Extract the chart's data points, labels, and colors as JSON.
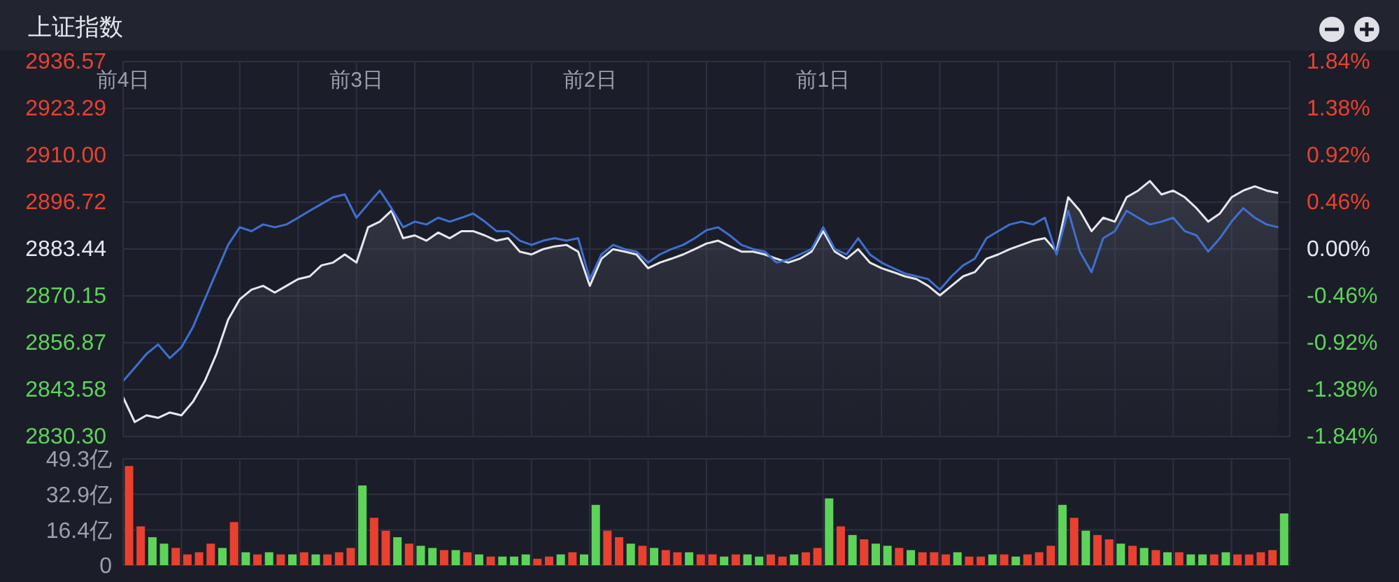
{
  "chart_data": [
    {
      "type": "line",
      "title": "上证指数",
      "categories": [
        "前4日",
        null,
        null,
        null,
        null,
        null,
        null,
        null,
        null,
        null,
        null,
        null,
        null,
        null,
        null,
        null,
        null,
        null,
        null,
        null,
        "前3日",
        null,
        null,
        null,
        null,
        null,
        null,
        null,
        null,
        null,
        null,
        null,
        null,
        null,
        null,
        null,
        null,
        null,
        null,
        null,
        "前2日",
        null,
        null,
        null,
        null,
        null,
        null,
        null,
        null,
        null,
        null,
        null,
        null,
        null,
        null,
        null,
        null,
        null,
        null,
        null,
        "前1日",
        null,
        null,
        null,
        null,
        null,
        null,
        null,
        null,
        null,
        null,
        null,
        null,
        null,
        null,
        null,
        null,
        null,
        null,
        null,
        null,
        null,
        null,
        null,
        null,
        null,
        null,
        null,
        null,
        null,
        null,
        null,
        null,
        null,
        null,
        null,
        null,
        null,
        null,
        null
      ],
      "series": [
        {
          "type": "area",
          "color": "#e6e8ee",
          "values": [
            2841.4,
            2834.4,
            2836.3,
            2835.6,
            2837.1,
            2836.3,
            2840.2,
            2846.0,
            2853.7,
            2863.4,
            2869.2,
            2871.9,
            2873.0,
            2871.1,
            2873.0,
            2874.9,
            2875.7,
            2878.8,
            2879.6,
            2881.9,
            2879.6,
            2889.6,
            2891.2,
            2894.3,
            2886.5,
            2887.3,
            2885.8,
            2888.1,
            2886.5,
            2888.5,
            2888.5,
            2887.3,
            2885.8,
            2886.5,
            2882.7,
            2881.9,
            2883.4,
            2884.2,
            2884.6,
            2882.7,
            2873.0,
            2880.7,
            2883.4,
            2882.7,
            2881.9,
            2878.0,
            2879.6,
            2880.7,
            2881.9,
            2883.4,
            2885.0,
            2885.8,
            2884.2,
            2882.7,
            2882.7,
            2881.9,
            2880.7,
            2879.6,
            2880.7,
            2882.7,
            2888.5,
            2882.7,
            2880.7,
            2883.4,
            2879.6,
            2878.0,
            2876.9,
            2875.7,
            2874.9,
            2873.0,
            2870.3,
            2873.0,
            2875.7,
            2876.9,
            2880.7,
            2881.9,
            2883.4,
            2884.6,
            2885.8,
            2886.5,
            2882.7,
            2898.1,
            2894.3,
            2888.5,
            2892.3,
            2891.2,
            2898.1,
            2900.0,
            2902.7,
            2898.9,
            2900.0,
            2898.1,
            2895.0,
            2891.2,
            2893.5,
            2898.1,
            2900.0,
            2901.2,
            2900.0,
            2899.3
          ]
        },
        {
          "type": "line",
          "color": "#3f6fd1",
          "values": [
            2846.0,
            2849.8,
            2853.7,
            2856.4,
            2852.5,
            2855.6,
            2861.4,
            2869.2,
            2876.9,
            2884.6,
            2889.6,
            2888.5,
            2890.4,
            2889.6,
            2890.4,
            2892.3,
            2894.3,
            2896.2,
            2898.1,
            2898.9,
            2892.3,
            2896.2,
            2900.0,
            2895.0,
            2889.6,
            2891.2,
            2890.4,
            2892.3,
            2891.2,
            2892.3,
            2893.5,
            2891.2,
            2888.5,
            2888.5,
            2885.8,
            2884.6,
            2885.8,
            2886.5,
            2885.8,
            2886.5,
            2874.9,
            2881.9,
            2884.6,
            2883.4,
            2882.7,
            2879.6,
            2881.9,
            2883.4,
            2884.6,
            2886.5,
            2888.8,
            2889.6,
            2887.3,
            2884.6,
            2883.4,
            2882.7,
            2879.6,
            2880.4,
            2881.9,
            2883.4,
            2889.6,
            2883.4,
            2881.9,
            2886.5,
            2881.9,
            2879.6,
            2878.0,
            2876.5,
            2875.7,
            2874.9,
            2871.9,
            2875.7,
            2878.8,
            2880.7,
            2886.5,
            2888.5,
            2890.4,
            2891.2,
            2890.4,
            2892.3,
            2881.9,
            2894.3,
            2882.7,
            2876.9,
            2886.5,
            2888.5,
            2894.3,
            2892.3,
            2890.4,
            2891.2,
            2892.3,
            2888.5,
            2887.3,
            2882.7,
            2886.5,
            2891.2,
            2895.0,
            2892.3,
            2890.4,
            2889.6
          ]
        }
      ],
      "ylim": [
        2830.3,
        2936.57
      ],
      "yticks": [
        {
          "value": 2830.3,
          "label": "2830.30"
        },
        {
          "value": 2843.58,
          "label": "2843.58"
        },
        {
          "value": 2856.87,
          "label": "2856.87"
        },
        {
          "value": 2870.15,
          "label": "2870.15"
        },
        {
          "value": 2883.44,
          "label": "2883.44"
        },
        {
          "value": 2896.72,
          "label": "2896.72"
        },
        {
          "value": 2910,
          "label": "2910.00"
        },
        {
          "value": 2923.29,
          "label": "2923.29"
        },
        {
          "value": 2936.57,
          "label": "2936.57"
        }
      ],
      "y2lim": [
        -1.84,
        1.84
      ],
      "y2ticks": [
        {
          "value": -1.84,
          "label": "-1.84%"
        },
        {
          "value": -1.38,
          "label": "-1.38%"
        },
        {
          "value": -0.92,
          "label": "-0.92%"
        },
        {
          "value": -0.46,
          "label": "-0.46%"
        },
        {
          "value": 0,
          "label": "0.00%"
        },
        {
          "value": 0.46,
          "label": "0.46%"
        },
        {
          "value": 0.92,
          "label": "0.92%"
        },
        {
          "value": 1.38,
          "label": "1.38%"
        },
        {
          "value": 1.84,
          "label": "1.84%"
        }
      ],
      "grid": true
    },
    {
      "type": "bar",
      "categories": [
        null,
        null,
        null,
        null,
        null,
        null,
        null,
        null,
        null,
        null,
        null,
        null,
        null,
        null,
        null,
        null,
        null,
        null,
        null,
        null,
        null,
        null,
        null,
        null,
        null,
        null,
        null,
        null,
        null,
        null,
        null,
        null,
        null,
        null,
        null,
        null,
        null,
        null,
        null,
        null,
        null,
        null,
        null,
        null,
        null,
        null,
        null,
        null,
        null,
        null,
        null,
        null,
        null,
        null,
        null,
        null,
        null,
        null,
        null,
        null,
        null,
        null,
        null,
        null,
        null,
        null,
        null,
        null,
        null,
        null,
        null,
        null,
        null,
        null,
        null,
        null,
        null,
        null,
        null,
        null,
        null,
        null,
        null,
        null,
        null,
        null,
        null,
        null,
        null,
        null,
        null,
        null,
        null,
        null,
        null,
        null,
        null,
        null,
        null,
        null
      ],
      "values": [
        46,
        18,
        13,
        10,
        8,
        5,
        6,
        10,
        8,
        20,
        6,
        5,
        6,
        5,
        5,
        6,
        5,
        5,
        6,
        8,
        37,
        22,
        16,
        13,
        10,
        9,
        8,
        7,
        7,
        6,
        5,
        4,
        4,
        4,
        5,
        3,
        4,
        5,
        6,
        5,
        28,
        16,
        13,
        10,
        9,
        8,
        7,
        6,
        6,
        5,
        5,
        4,
        5,
        5,
        4,
        5,
        4,
        5,
        6,
        8,
        31,
        18,
        14,
        12,
        10,
        9,
        8,
        7,
        6,
        6,
        5,
        6,
        4,
        4,
        5,
        5,
        4,
        5,
        6,
        9,
        28,
        22,
        16,
        14,
        12,
        10,
        9,
        8,
        7,
        6,
        6,
        5,
        5,
        5,
        6,
        5,
        5,
        6,
        7,
        24
      ],
      "colors": [
        "#e8412f",
        "#e8412f",
        "#5ed35a",
        "#5ed35a",
        "#e8412f",
        "#e8412f",
        "#e8412f",
        "#e8412f",
        "#5ed35a",
        "#e8412f",
        "#5ed35a",
        "#e8412f",
        "#5ed35a",
        "#e8412f",
        "#5ed35a",
        "#e8412f",
        "#5ed35a",
        "#e8412f",
        "#e8412f",
        "#e8412f",
        "#5ed35a",
        "#e8412f",
        "#e8412f",
        "#5ed35a",
        "#e8412f",
        "#5ed35a",
        "#5ed35a",
        "#e8412f",
        "#5ed35a",
        "#e8412f",
        "#5ed35a",
        "#e8412f",
        "#5ed35a",
        "#5ed35a",
        "#5ed35a",
        "#e8412f",
        "#e8412f",
        "#5ed35a",
        "#e8412f",
        "#5ed35a",
        "#5ed35a",
        "#e8412f",
        "#e8412f",
        "#5ed35a",
        "#e8412f",
        "#5ed35a",
        "#e8412f",
        "#e8412f",
        "#5ed35a",
        "#e8412f",
        "#e8412f",
        "#5ed35a",
        "#e8412f",
        "#5ed35a",
        "#5ed35a",
        "#e8412f",
        "#e8412f",
        "#5ed35a",
        "#e8412f",
        "#e8412f",
        "#5ed35a",
        "#e8412f",
        "#5ed35a",
        "#e8412f",
        "#5ed35a",
        "#5ed35a",
        "#e8412f",
        "#5ed35a",
        "#e8412f",
        "#e8412f",
        "#e8412f",
        "#5ed35a",
        "#e8412f",
        "#e8412f",
        "#5ed35a",
        "#e8412f",
        "#5ed35a",
        "#e8412f",
        "#e8412f",
        "#e8412f",
        "#5ed35a",
        "#e8412f",
        "#5ed35a",
        "#e8412f",
        "#e8412f",
        "#5ed35a",
        "#e8412f",
        "#5ed35a",
        "#e8412f",
        "#5ed35a",
        "#e8412f",
        "#5ed35a",
        "#5ed35a",
        "#e8412f",
        "#5ed35a",
        "#e8412f",
        "#e8412f",
        "#e8412f",
        "#e8412f",
        "#5ed35a"
      ],
      "ylim": [
        0,
        49.3
      ],
      "yticks": [
        0,
        {
          "value": 16.4,
          "label": "16.4亿"
        },
        {
          "value": 32.9,
          "label": "32.9亿"
        },
        {
          "value": 49.3,
          "label": "49.3亿"
        }
      ],
      "tick_labels": "y",
      "grid": true
    }
  ]
}
